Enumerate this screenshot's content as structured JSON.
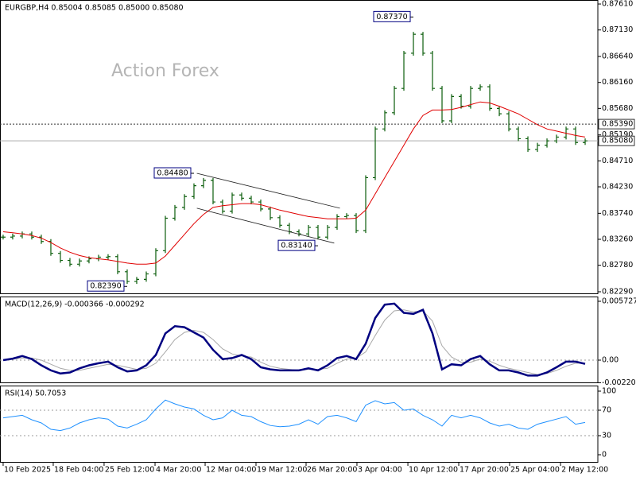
{
  "chart_data": [
    {
      "type": "ohlc",
      "title": "EURGBP,H4  0.85004 0.85085 0.85000 0.85080",
      "watermark": "Action Forex",
      "xlim": [
        -0.33,
        62.33
      ],
      "xticks": [
        {
          "value": 0,
          "label": "10 Feb 2025"
        },
        {
          "value": 5.25,
          "label": "18 Feb 04:00"
        },
        {
          "value": 10.58,
          "label": "25 Feb 12:00"
        },
        {
          "value": 15.92,
          "label": "4 Mar 20:00"
        },
        {
          "value": 21.17,
          "label": "12 Mar 04:00"
        },
        {
          "value": 26.5,
          "label": "19 Mar 12:00"
        },
        {
          "value": 31.75,
          "label": "26 Mar 20:00"
        },
        {
          "value": 37.08,
          "label": "3 Apr 04:00"
        },
        {
          "value": 42.42,
          "label": "10 Apr 12:00"
        },
        {
          "value": 47.75,
          "label": "17 Apr 20:00"
        },
        {
          "value": 53.08,
          "label": "25 Apr 04:00"
        },
        {
          "value": 58.42,
          "label": "2 May 12:00"
        }
      ],
      "ylim": [
        0.82246,
        0.87684
      ],
      "yticks": [
        {
          "value": 0.8761,
          "label": "0.87610"
        },
        {
          "value": 0.8713,
          "label": "0.87130"
        },
        {
          "value": 0.8664,
          "label": "0.86640"
        },
        {
          "value": 0.8616,
          "label": "0.86160"
        },
        {
          "value": 0.8568,
          "label": "0.85680"
        },
        {
          "value": 0.8519,
          "label": "0.85190"
        },
        {
          "value": 0.8471,
          "label": "0.84710"
        },
        {
          "value": 0.8423,
          "label": "0.84230"
        },
        {
          "value": 0.8374,
          "label": "0.83740"
        },
        {
          "value": 0.8326,
          "label": "0.83260"
        },
        {
          "value": 0.8278,
          "label": "0.82780"
        },
        {
          "value": 0.8229,
          "label": "0.82290"
        }
      ],
      "series": [
        {
          "color": "#0b5d0b",
          "values": [
            0.833,
            0.8332,
            0.8336,
            0.833,
            0.8322,
            0.83,
            0.8287,
            0.828,
            0.8286,
            0.829,
            0.8293,
            0.8294,
            0.8266,
            0.8248,
            0.8252,
            0.8262,
            0.8305,
            0.8365,
            0.8385,
            0.8405,
            0.8425,
            0.8435,
            0.8395,
            0.8378,
            0.8408,
            0.8402,
            0.8395,
            0.8382,
            0.8366,
            0.8352,
            0.834,
            0.8336,
            0.8348,
            0.833,
            0.8348,
            0.8368,
            0.837,
            0.8342,
            0.844,
            0.853,
            0.856,
            0.8605,
            0.867,
            0.8705,
            0.867,
            0.8605,
            0.8545,
            0.859,
            0.8572,
            0.8605,
            0.8608,
            0.8568,
            0.8558,
            0.853,
            0.8512,
            0.8492,
            0.85,
            0.8508,
            0.8515,
            0.853,
            0.8505,
            0.8508
          ]
        },
        {
          "color": "#e00000",
          "values": [
            0.834,
            0.8338,
            0.8336,
            0.8333,
            0.8328,
            0.832,
            0.831,
            0.8302,
            0.8296,
            0.8292,
            0.829,
            0.8288,
            0.8285,
            0.8282,
            0.828,
            0.828,
            0.8282,
            0.8295,
            0.8315,
            0.8335,
            0.8355,
            0.8372,
            0.8385,
            0.8388,
            0.839,
            0.8392,
            0.8392,
            0.839,
            0.8385,
            0.838,
            0.8376,
            0.8372,
            0.8368,
            0.8366,
            0.8364,
            0.8364,
            0.8364,
            0.8365,
            0.838,
            0.841,
            0.844,
            0.847,
            0.85,
            0.853,
            0.8555,
            0.8565,
            0.8565,
            0.8566,
            0.857,
            0.8575,
            0.858,
            0.8578,
            0.8572,
            0.8565,
            0.8558,
            0.8548,
            0.8538,
            0.853,
            0.8526,
            0.8522,
            0.8518,
            0.8515
          ]
        }
      ],
      "levels": [
        {
          "value": 0.8539,
          "label": "0.85390",
          "style": "dotted"
        },
        {
          "value": 0.8508,
          "label": "0.85080",
          "style": "solid"
        }
      ],
      "annotations": [
        {
          "x": 20,
          "value": 0.8448,
          "label": "0.84480"
        },
        {
          "x": 13,
          "value": 0.8239,
          "label": "0.82390"
        },
        {
          "x": 43,
          "value": 0.8737,
          "label": "0.87370"
        },
        {
          "x": 33,
          "value": 0.8314,
          "label": "0.83140"
        }
      ],
      "trendlines": [
        {
          "x": [
            20.3,
            35.3
          ],
          "values": [
            0.8448,
            0.83835
          ]
        },
        {
          "x": [
            20.3,
            34.7
          ],
          "values": [
            0.83835,
            0.8319
          ]
        }
      ]
    },
    {
      "type": "line",
      "title": "MACD(12,26,9) -0.000366 -0.000292",
      "xlim": [
        -0.33,
        62.33
      ],
      "ylim": [
        -0.002245,
        0.00619
      ],
      "yticks": [
        0.005727,
        {
          "value": 0,
          "label": "0.00"
        },
        -0.002204
      ],
      "hlines": [
        0
      ],
      "series": [
        {
          "color": "#000080",
          "width": 2.5,
          "values": [
            0,
            0.00015,
            0.0004,
            0.0001,
            -0.0005,
            -0.001,
            -0.0013,
            -0.0012,
            -0.0008,
            -0.0005,
            -0.0003,
            -0.00015,
            -0.0007,
            -0.0011,
            -0.001,
            -0.0005,
            0.0005,
            0.0026,
            0.0033,
            0.0032,
            0.0027,
            0.0022,
            0.001,
            0.0001,
            0.0002,
            0.0005,
            0.0001,
            -0.0007,
            -0.0009,
            -0.001,
            -0.001,
            -0.001,
            -0.0008,
            -0.001,
            -0.0005,
            0.0002,
            0.0004,
            0.0001,
            0.0016,
            0.0041,
            0.0054,
            0.0055,
            0.0046,
            0.0045,
            0.0049,
            0.0026,
            -0.0009,
            -0.0004,
            -0.0005,
            0.0001,
            0.0004,
            -0.0004,
            -0.001,
            -0.001,
            -0.0012,
            -0.0015,
            -0.0015,
            -0.0012,
            -0.0007,
            -0.00015,
            -0.00015,
            -0.000366
          ]
        },
        {
          "color": "#a8a8a8",
          "width": 1,
          "values": [
            0,
            0.0001,
            0.0002,
            0.0002,
            0,
            -0.0004,
            -0.0008,
            -0.001,
            -0.001,
            -0.0008,
            -0.0006,
            -0.0004,
            -0.0005,
            -0.0007,
            -0.0009,
            -0.0008,
            -0.0003,
            0.0008,
            0.002,
            0.0027,
            0.0029,
            0.0027,
            0.002,
            0.0011,
            0.0006,
            0.0004,
            0.0003,
            -0.0002,
            -0.0006,
            -0.0008,
            -0.0009,
            -0.001,
            -0.0009,
            -0.0009,
            -0.0008,
            -0.0003,
            0.0001,
            0.0002,
            0.0008,
            0.0024,
            0.0039,
            0.0048,
            0.0049,
            0.0047,
            0.0048,
            0.0038,
            0.0014,
            0.0003,
            -0.0002,
            -0.0002,
            0.0001,
            -0.0001,
            -0.0005,
            -0.0008,
            -0.001,
            -0.0012,
            -0.0014,
            -0.0013,
            -0.001,
            -0.0006,
            -0.0003,
            -0.000292
          ]
        }
      ]
    },
    {
      "type": "line",
      "title": "RSI(14) 50.7053",
      "xlim": [
        -0.33,
        62.33
      ],
      "ylim": [
        -12.5,
        108.75
      ],
      "yticks": [
        100,
        70,
        30,
        0
      ],
      "hlines": [
        70,
        30
      ],
      "series": [
        {
          "color": "#1e90ff",
          "width": 1,
          "values": [
            58,
            60,
            62,
            55,
            50,
            40,
            38,
            42,
            50,
            55,
            58,
            56,
            45,
            42,
            48,
            55,
            72,
            86,
            80,
            75,
            72,
            62,
            55,
            58,
            70,
            62,
            60,
            52,
            46,
            44,
            45,
            48,
            55,
            48,
            60,
            62,
            58,
            52,
            78,
            85,
            80,
            82,
            70,
            72,
            62,
            55,
            45,
            62,
            58,
            62,
            58,
            50,
            45,
            48,
            42,
            40,
            48,
            52,
            56,
            60,
            48,
            50.7053
          ]
        }
      ]
    }
  ]
}
